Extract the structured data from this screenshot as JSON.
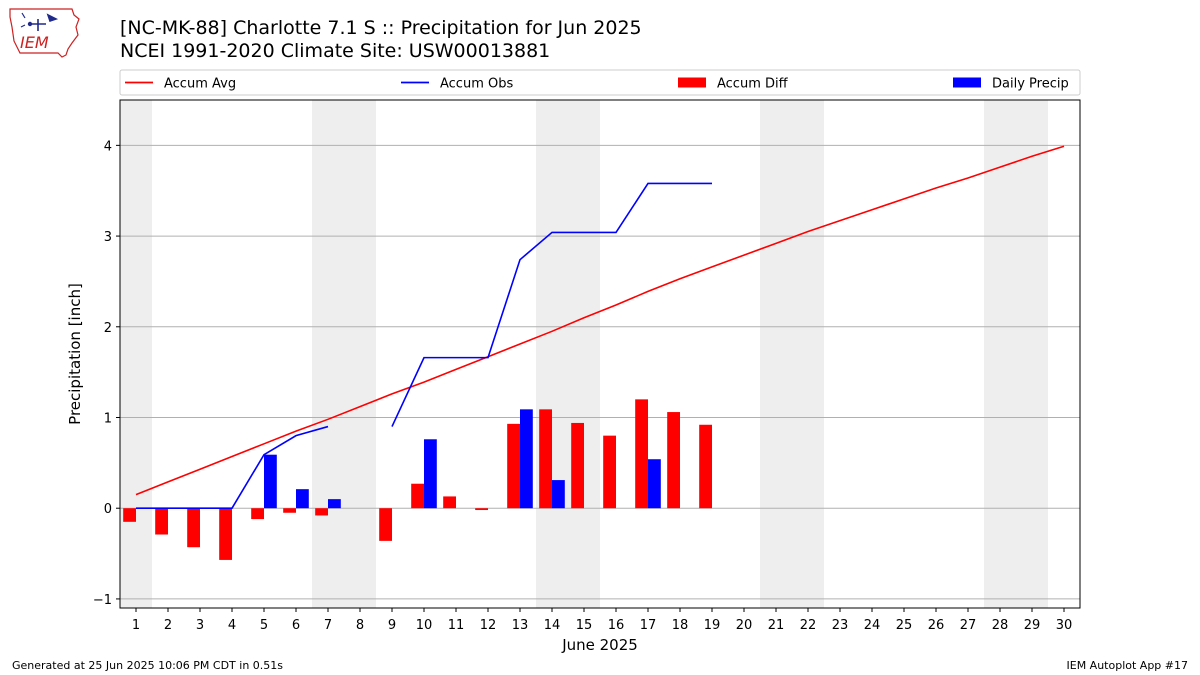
{
  "header": {
    "title_line1": "[NC-MK-88] Charlotte 7.1 S :: Precipitation for Jun 2025",
    "title_line2": "NCEI 1991-2020 Climate Site: USW00013881"
  },
  "logo": {
    "text": "IEM",
    "color": "#cc2222"
  },
  "footer": {
    "left": "Generated at 25 Jun 2025 10:06 PM CDT in 0.51s",
    "right": "IEM Autoplot App #17"
  },
  "chart_data": {
    "type": "bar",
    "xlabel": "June 2025",
    "ylabel": "Precipitation [inch]",
    "ylim": [
      -1.1,
      4.5
    ],
    "xlim": [
      0.5,
      30.5
    ],
    "yticks": [
      -1,
      0,
      1,
      2,
      3,
      4
    ],
    "ytick_labels": [
      "−1",
      "0",
      "1",
      "2",
      "3",
      "4"
    ],
    "xticks": [
      1,
      2,
      3,
      4,
      5,
      6,
      7,
      8,
      9,
      10,
      11,
      12,
      13,
      14,
      15,
      16,
      17,
      18,
      19,
      20,
      21,
      22,
      23,
      24,
      25,
      26,
      27,
      28,
      29,
      30
    ],
    "weekend_shading": [
      [
        0.5,
        1.5
      ],
      [
        6.5,
        8.5
      ],
      [
        13.5,
        15.5
      ],
      [
        20.5,
        22.5
      ],
      [
        27.5,
        29.5
      ]
    ],
    "shade_color": "#eeeeee",
    "grid": "y",
    "legend": {
      "placement": "top",
      "entries": [
        {
          "label": "Accum Avg",
          "kind": "line",
          "color": "#ff0000"
        },
        {
          "label": "Accum Obs",
          "kind": "line",
          "color": "#0000ff"
        },
        {
          "label": "Accum Diff",
          "kind": "bar",
          "color": "#ff0000"
        },
        {
          "label": "Daily Precip",
          "kind": "bar",
          "color": "#0000ff"
        }
      ]
    },
    "series": [
      {
        "name": "Accum Avg",
        "kind": "line",
        "color": "#ff0000",
        "x": [
          1,
          2,
          3,
          4,
          5,
          6,
          7,
          8,
          9,
          10,
          11,
          12,
          13,
          14,
          15,
          16,
          17,
          18,
          19,
          20,
          21,
          22,
          23,
          24,
          25,
          26,
          27,
          28,
          29,
          30
        ],
        "values": [
          0.15,
          0.29,
          0.43,
          0.57,
          0.71,
          0.85,
          0.98,
          1.12,
          1.26,
          1.39,
          1.53,
          1.67,
          1.81,
          1.95,
          2.1,
          2.24,
          2.39,
          2.53,
          2.66,
          2.79,
          2.92,
          3.05,
          3.17,
          3.29,
          3.41,
          3.53,
          3.64,
          3.76,
          3.88,
          3.99
        ]
      },
      {
        "name": "Accum Obs",
        "kind": "line",
        "color": "#0000ff",
        "segments": [
          {
            "x": [
              1,
              2,
              3,
              4,
              5,
              6,
              7
            ],
            "values": [
              0.0,
              0.0,
              0.0,
              0.0,
              0.59,
              0.8,
              0.9
            ]
          },
          {
            "x": [
              9,
              10,
              11,
              12,
              13,
              14,
              15,
              16,
              17,
              18,
              19
            ],
            "values": [
              0.9,
              1.66,
              1.66,
              1.66,
              2.74,
              3.04,
              3.04,
              3.04,
              3.58,
              3.58,
              3.58
            ]
          }
        ]
      },
      {
        "name": "Accum Diff",
        "kind": "bar",
        "color": "#ff0000",
        "x": [
          1,
          2,
          3,
          4,
          5,
          6,
          7,
          9,
          10,
          11,
          12,
          13,
          14,
          15,
          16,
          17,
          18,
          19
        ],
        "values": [
          -0.15,
          -0.29,
          -0.43,
          -0.57,
          -0.12,
          -0.05,
          -0.08,
          -0.36,
          0.27,
          0.13,
          -0.02,
          0.93,
          1.09,
          0.94,
          0.8,
          1.2,
          1.06,
          0.92
        ]
      },
      {
        "name": "Daily Precip",
        "kind": "bar",
        "color": "#0000ff",
        "x": [
          5,
          6,
          7,
          10,
          13,
          14,
          17
        ],
        "values": [
          0.59,
          0.21,
          0.1,
          0.76,
          1.09,
          0.31,
          0.54
        ]
      }
    ]
  }
}
